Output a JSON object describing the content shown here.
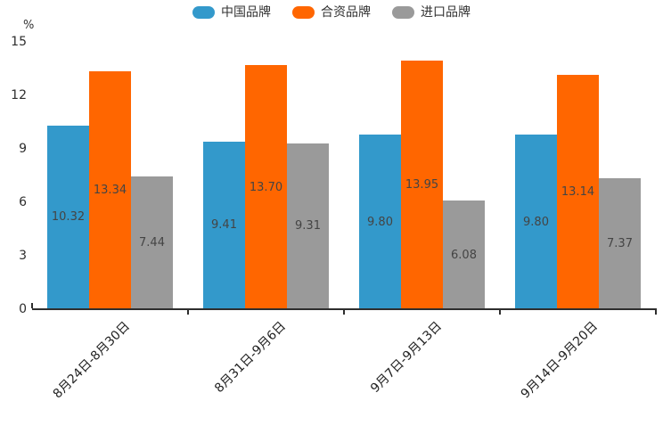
{
  "chart_data": {
    "type": "bar",
    "title": "",
    "unit_label": "%",
    "categories": [
      "8月24日-8月30日",
      "8月31日-9月6日",
      "9月7日-9月13日",
      "9月14日-9月20日"
    ],
    "series": [
      {
        "name": "中国品牌",
        "color": "#3399cb",
        "values": [
          10.32,
          9.41,
          9.8,
          9.8
        ],
        "labels": [
          "10.32",
          "9.41",
          "9.80",
          "9.80"
        ]
      },
      {
        "name": "合资品牌",
        "color": "#ff6600",
        "values": [
          13.34,
          13.7,
          13.95,
          13.14
        ],
        "labels": [
          "13.34",
          "13.70",
          "13.95",
          "13.14"
        ]
      },
      {
        "name": "进口品牌",
        "color": "#9a9a9a",
        "values": [
          7.44,
          9.31,
          6.08,
          7.37
        ],
        "labels": [
          "7.44",
          "9.31",
          "6.08",
          "7.37"
        ]
      }
    ],
    "ylim": [
      0,
      15
    ],
    "yticks": [
      0,
      3,
      6,
      9,
      12,
      15
    ],
    "legend_position": "top-center",
    "grid": false,
    "value_labels": true,
    "x_label_rotation_deg": 45
  }
}
